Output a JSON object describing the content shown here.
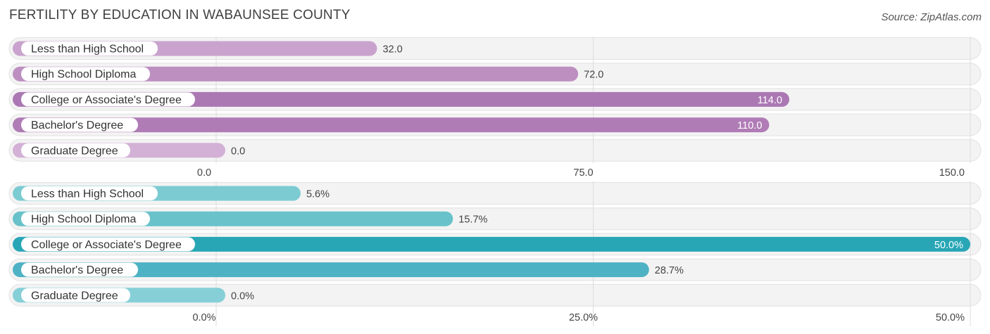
{
  "title": "FERTILITY BY EDUCATION IN WABAUNSEE COUNTY",
  "source": "Source: ZipAtlas.com",
  "chart_data": [
    {
      "type": "bar",
      "orientation": "horizontal",
      "categories": [
        "Less than High School",
        "High School Diploma",
        "College or Associate's Degree",
        "Bachelor's Degree",
        "Graduate Degree"
      ],
      "values": [
        32.0,
        72.0,
        114.0,
        110.0,
        0.0
      ],
      "value_labels": [
        "32.0",
        "72.0",
        "114.0",
        "110.0",
        "0.0"
      ],
      "xlim": [
        0,
        150
      ],
      "ticks": [
        "0.0",
        "75.0",
        "150.0"
      ],
      "tick_values": [
        0,
        75,
        150
      ],
      "colors": [
        "#c9a3cd",
        "#bd8fc1",
        "#ab78b3",
        "#b07cb6",
        "#d3b1d6"
      ],
      "label_inside_bar": [
        false,
        false,
        true,
        true,
        false
      ],
      "grid": true
    },
    {
      "type": "bar",
      "orientation": "horizontal",
      "categories": [
        "Less than High School",
        "High School Diploma",
        "College or Associate's Degree",
        "Bachelor's Degree",
        "Graduate Degree"
      ],
      "values": [
        5.6,
        15.7,
        50.0,
        28.7,
        0.0
      ],
      "value_labels": [
        "5.6%",
        "15.7%",
        "50.0%",
        "28.7%",
        "0.0%"
      ],
      "xlim": [
        0,
        50
      ],
      "ticks": [
        "0.0%",
        "25.0%",
        "50.0%"
      ],
      "tick_values": [
        0,
        25,
        50
      ],
      "colors": [
        "#7ccbd2",
        "#69c2ca",
        "#28a6b6",
        "#4db2c4",
        "#86cfd7"
      ],
      "label_inside_bar": [
        false,
        false,
        true,
        false,
        false
      ],
      "grid": true
    }
  ]
}
